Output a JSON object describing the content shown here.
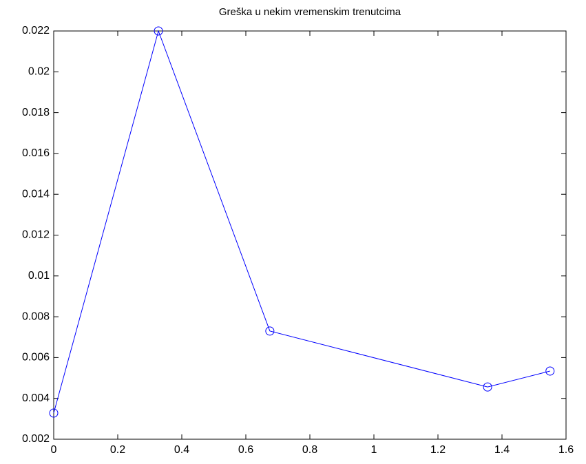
{
  "chart_data": {
    "type": "line",
    "title": "Greška u nekim vremenskim trenutcima",
    "x": [
      0,
      0.327,
      0.675,
      1.355,
      1.55
    ],
    "series": [
      {
        "color": "#0000ff",
        "values": [
          0.00328,
          0.022,
          0.0073,
          0.00456,
          0.00534
        ]
      }
    ],
    "marker": "circle",
    "xlim": [
      0,
      1.6
    ],
    "xticks": [
      0,
      0.2,
      0.4,
      0.6,
      0.8,
      1,
      1.2,
      1.4,
      1.6
    ],
    "ylim": [
      0.002,
      0.022
    ],
    "yticks": [
      0.002,
      0.004,
      0.006,
      0.008,
      0.01,
      0.012,
      0.014,
      0.016,
      0.018,
      0.02,
      0.022
    ]
  }
}
